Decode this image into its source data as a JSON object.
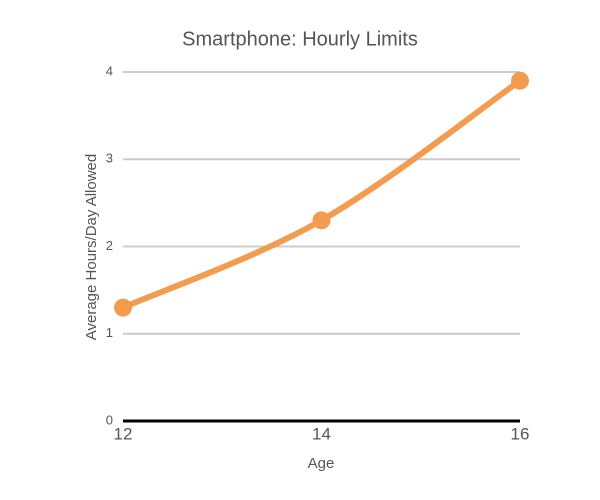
{
  "chart_data": {
    "type": "line",
    "title": "Smartphone: Hourly Limits",
    "x_label": "Age",
    "y_label": "Average Hours/Day Allowed",
    "x": [
      12,
      14,
      16
    ],
    "series": [
      {
        "name": "Smartphone",
        "color": "#f39c4f",
        "values": [
          1.3,
          2.3,
          3.9
        ]
      }
    ],
    "xlim": [
      12,
      16
    ],
    "xticks": [
      12,
      14,
      16
    ],
    "ylim": [
      0,
      4
    ],
    "yticks": [
      0,
      1,
      2,
      3,
      4
    ],
    "grid": true
  }
}
